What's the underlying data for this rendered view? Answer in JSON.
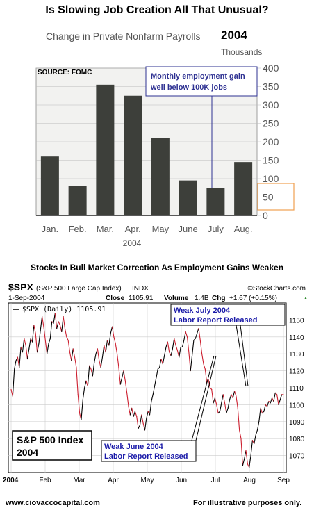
{
  "page": {
    "title": "Is Slowing Job Creation All That Unusual?",
    "subtitle_text": "Change in Private Nonfarm Payrolls",
    "subtitle_year": "2004",
    "units": "Thousands",
    "middle_title": "Stocks In Bull Market Correction As Employment Gains Weaken",
    "footer_left": "www.ciovaccocapital.com",
    "footer_right": "For illustrative purposes only."
  },
  "chart_data": [
    {
      "type": "bar",
      "title": "Change in Private Nonfarm Payrolls 2004",
      "categories": [
        "Jan.",
        "Feb.",
        "Mar.",
        "Apr.",
        "May",
        "June",
        "July",
        "Aug."
      ],
      "values": [
        160,
        80,
        355,
        325,
        210,
        95,
        75,
        145
      ],
      "xlabel": "2004",
      "ylabel": "Thousands",
      "ylim": [
        0,
        400
      ],
      "yticks": [
        0,
        50,
        100,
        150,
        200,
        250,
        300,
        350,
        400
      ],
      "y_axis_side": "right",
      "bar_color": "#3d3f3a",
      "source": "SOURCE:  FOMC",
      "callout": "Monthly employment gain well below 100K jobs",
      "callout_color": "#2e3192",
      "highlight_box_color": "#f0a050"
    },
    {
      "type": "line",
      "symbol": "$SPX",
      "name_full": "(S&P 500 Large Cap Index)",
      "exchange": "INDX",
      "brand": "©StockCharts.com",
      "date": "1-Sep-2004",
      "close_label": "Close",
      "close": "1105.91",
      "volume_label": "Volume",
      "volume": "1.4B",
      "chg_label": "Chg",
      "chg": "+1.67 (+0.15%)",
      "legend_entry": "$SPX (Daily) 1105.91",
      "ylim": [
        1060,
        1160
      ],
      "yticks": [
        1070,
        1080,
        1090,
        1100,
        1110,
        1120,
        1130,
        1140,
        1150
      ],
      "x_labels": [
        "2004",
        "Feb",
        "Mar",
        "Apr",
        "May",
        "Jun",
        "Jul",
        "Aug",
        "Sep"
      ],
      "up_color": "#000000",
      "down_color": "#cc1f2f",
      "box_label_line1": "S&P 500 Index",
      "box_label_line2": "2004",
      "annotation_july_line1": "Weak July 2004",
      "annotation_july_line2": "Labor Report Released",
      "annotation_june_line1": "Weak June 2004",
      "annotation_june_line2": "Labor Report Released",
      "annotation_color": "#1a1aa8",
      "x": [
        0,
        1,
        2,
        3,
        4,
        5,
        6,
        7,
        8,
        9,
        10,
        11,
        12,
        13,
        14,
        15,
        16,
        17,
        18,
        19,
        20,
        21,
        22,
        23,
        24,
        25,
        26,
        27,
        28,
        29,
        30,
        31,
        32,
        33,
        34,
        35,
        36,
        37,
        38,
        39,
        40,
        41,
        42,
        43,
        44,
        45,
        46,
        47,
        48,
        49,
        50,
        51,
        52,
        53,
        54,
        55,
        56,
        57,
        58,
        59,
        60,
        61,
        62,
        63,
        64,
        65,
        66,
        67,
        68,
        69,
        70,
        71,
        72,
        73,
        74,
        75,
        76,
        77,
        78,
        79,
        80,
        81,
        82,
        83,
        84,
        85,
        86,
        87,
        88,
        89,
        90,
        91,
        92,
        93,
        94,
        95,
        96,
        97,
        98,
        99,
        100,
        101,
        102,
        103,
        104,
        105,
        106,
        107,
        108,
        109,
        110,
        111,
        112,
        113,
        114,
        115,
        116,
        117,
        118,
        119,
        120,
        121,
        122,
        123,
        124,
        125,
        126,
        127,
        128,
        129,
        130,
        131,
        132,
        133,
        134,
        135,
        136,
        137,
        138,
        139,
        140,
        141,
        142,
        143,
        144,
        145,
        146,
        147,
        148,
        149,
        150,
        151,
        152,
        153,
        154,
        155,
        156,
        157,
        158,
        159,
        160,
        161,
        162,
        163,
        164,
        165,
        166,
        167
      ],
      "values": [
        1109,
        1105,
        1121,
        1126,
        1128,
        1122,
        1134,
        1131,
        1139,
        1135,
        1127,
        1133,
        1139,
        1137,
        1147,
        1142,
        1131,
        1136,
        1144,
        1152,
        1146,
        1138,
        1130,
        1136,
        1139,
        1149,
        1148,
        1154,
        1145,
        1149,
        1147,
        1143,
        1152,
        1145,
        1140,
        1138,
        1131,
        1126,
        1133,
        1128,
        1122,
        1106,
        1095,
        1091,
        1103,
        1110,
        1114,
        1111,
        1123,
        1121,
        1117,
        1125,
        1130,
        1133,
        1126,
        1122,
        1128,
        1135,
        1131,
        1138,
        1135,
        1142,
        1146,
        1140,
        1136,
        1130,
        1122,
        1112,
        1116,
        1120,
        1114,
        1107,
        1099,
        1094,
        1098,
        1093,
        1096,
        1093,
        1086,
        1088,
        1094,
        1089,
        1085,
        1092,
        1096,
        1094,
        1102,
        1106,
        1111,
        1116,
        1121,
        1122,
        1127,
        1124,
        1129,
        1134,
        1137,
        1131,
        1129,
        1133,
        1139,
        1135,
        1132,
        1128,
        1134,
        1134,
        1138,
        1143,
        1140,
        1131,
        1120,
        1129,
        1138,
        1139,
        1142,
        1145,
        1138,
        1130,
        1124,
        1121,
        1113,
        1115,
        1110,
        1109,
        1101,
        1104,
        1100,
        1095,
        1096,
        1101,
        1106,
        1101,
        1095,
        1098,
        1103,
        1106,
        1104,
        1108,
        1105,
        1098,
        1085,
        1080,
        1064,
        1068,
        1073,
        1065,
        1063,
        1070,
        1079,
        1077,
        1082,
        1085,
        1090,
        1098,
        1095,
        1096,
        1100,
        1099,
        1102,
        1101,
        1104,
        1102,
        1107,
        1106,
        1100,
        1103,
        1106,
        1105.91
      ]
    }
  ]
}
